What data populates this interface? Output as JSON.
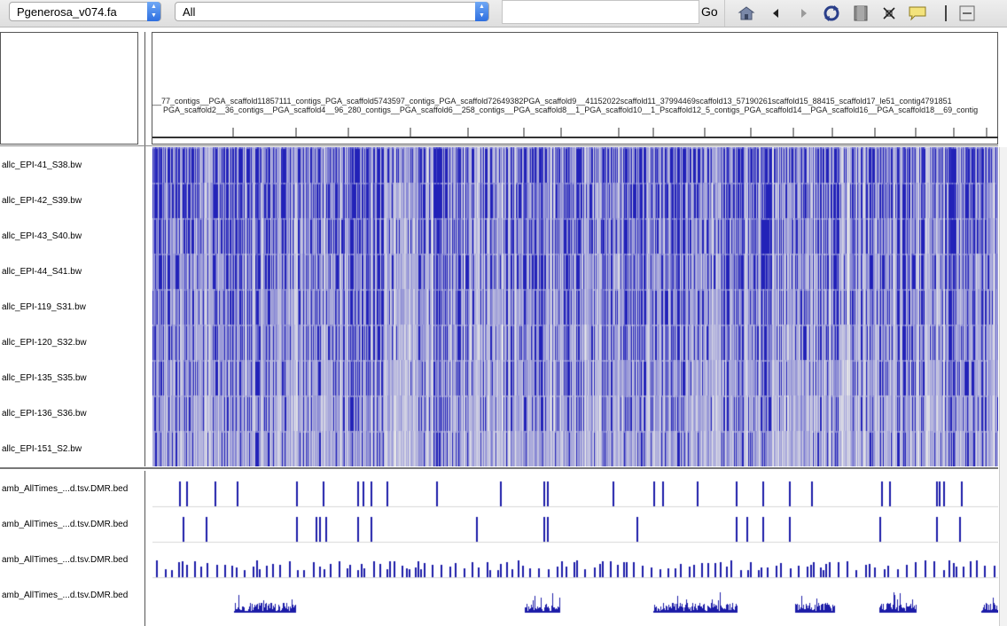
{
  "toolbar": {
    "genome_value": "Pgenerosa_v074.fa",
    "chromosome_value": "All",
    "locus_value": "",
    "go_label": "Go",
    "icons": [
      "home-icon",
      "back-arrow-icon",
      "forward-arrow-icon",
      "refresh-icon",
      "roi-icon",
      "fit-to-window-icon",
      "popup-text-icon",
      "divider-icon",
      "resize-icon"
    ]
  },
  "ruler": {
    "row1": "__77_contigs__PGA_scaffold11857111_contigs_PGA_scaffold5743597_contigs_PGA_scaffold72649382PGA_scaffold9__41152022scaffold11_37994469scaffold13_57190261scaffold15_88415_scaffold17_le51_contig4791851",
    "row2": "PGA_scaffold2__36_contigs__PGA_scaffold4__96_280_contigs__PGA_scaffold6__258_contigs__PGA_scaffold8__1_PGA_scaffold10__1_Pscaffold12_5_contigs_PGA_scaffold14__PGA_scaffold16__PGA_scaffold18__69_contig"
  },
  "data_tracks": [
    {
      "label": "allc_EPI-41_S38.bw"
    },
    {
      "label": "allc_EPI-42_S39.bw"
    },
    {
      "label": "allc_EPI-43_S40.bw"
    },
    {
      "label": "allc_EPI-44_S41.bw"
    },
    {
      "label": "allc_EPI-119_S31.bw"
    },
    {
      "label": "allc_EPI-120_S32.bw"
    },
    {
      "label": "allc_EPI-135_S35.bw"
    },
    {
      "label": "allc_EPI-136_S36.bw"
    },
    {
      "label": "allc_EPI-151_S2.bw"
    }
  ],
  "feature_tracks": [
    {
      "label": "amb_AllTimes_...d.tsv.DMR.bed"
    },
    {
      "label": "amb_AllTimes_...d.tsv.DMR.bed"
    },
    {
      "label": "amb_AllTimes_...d.tsv.DMR.bed"
    },
    {
      "label": "amb_AllTimes_...d.tsv.DMR.bed"
    }
  ],
  "colors": {
    "signal": "#2222b8",
    "signal_light": "#9a9ae6",
    "feature": "#1c1ca8",
    "toolbar_bg": "#e4e4e4",
    "combo_arrow": "#2e6fe0"
  }
}
